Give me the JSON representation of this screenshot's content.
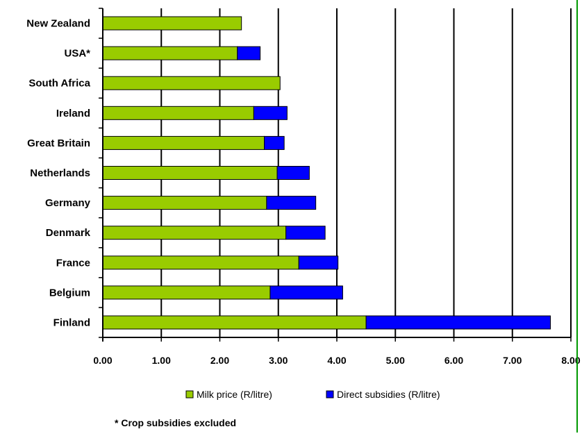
{
  "chart_data": {
    "type": "bar",
    "orientation": "horizontal",
    "stacked": true,
    "categories": [
      "New Zealand",
      "USA*",
      "South Africa",
      "Ireland",
      "Great Britain",
      "Netherlands",
      "Germany",
      "Denmark",
      "France",
      "Belgium",
      "Finland"
    ],
    "series": [
      {
        "name": "Milk price (R/litre)",
        "color": "#99cc00",
        "values": [
          2.37,
          2.3,
          3.03,
          2.58,
          2.76,
          2.98,
          2.8,
          3.13,
          3.35,
          2.86,
          4.5
        ]
      },
      {
        "name": "Direct subsidies (R/litre)",
        "color": "#0000ff",
        "values": [
          0,
          0.39,
          0,
          0.57,
          0.34,
          0.55,
          0.84,
          0.67,
          0.67,
          1.24,
          3.15
        ]
      }
    ],
    "xlim": [
      0,
      8
    ],
    "xticks": [
      "0.00",
      "1.00",
      "2.00",
      "3.00",
      "4.00",
      "5.00",
      "6.00",
      "7.00",
      "8.00"
    ],
    "grid": true,
    "legend_position": "bottom",
    "legend": [
      "Milk price (R/litre)",
      "Direct subsidies (R/litre)"
    ],
    "footnote": "* Crop subsidies excluded",
    "title": "",
    "xlabel": "",
    "ylabel": ""
  }
}
